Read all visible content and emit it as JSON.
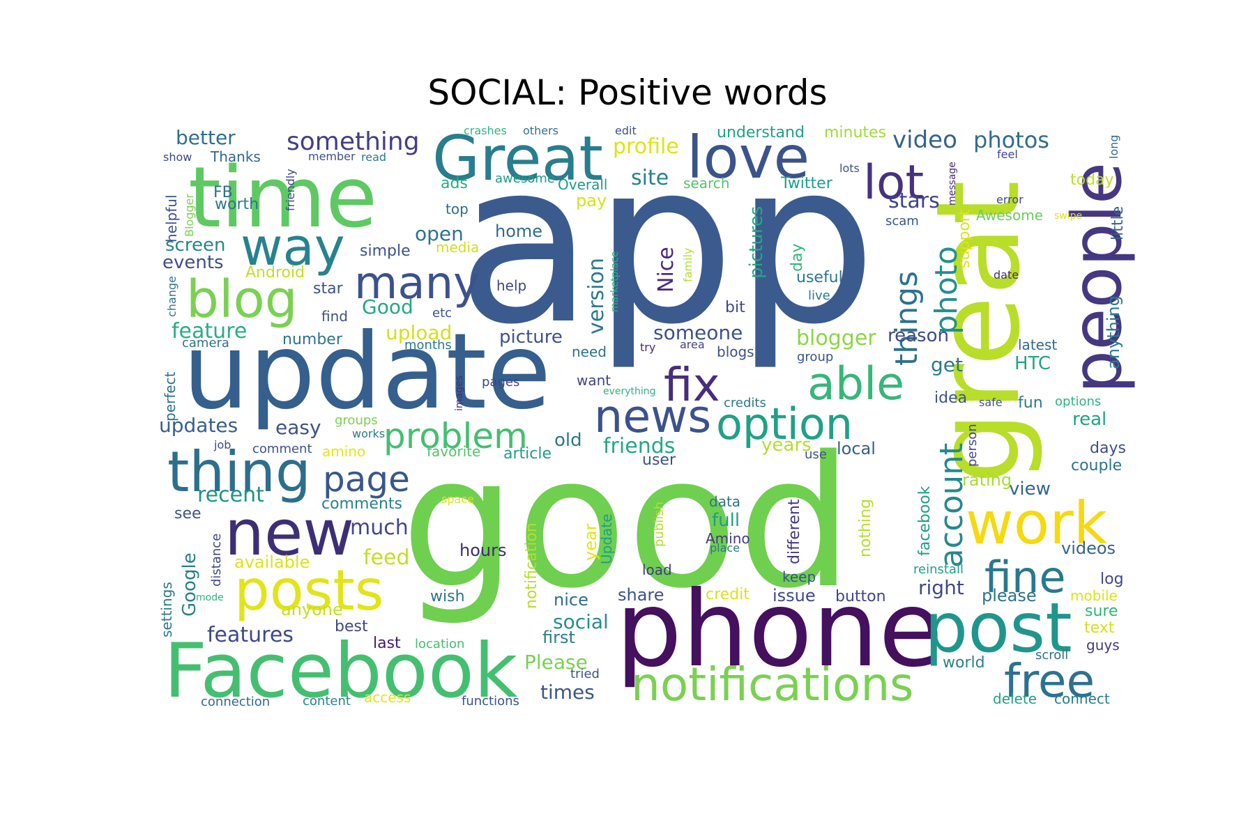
{
  "title": "SOCIAL: Positive words",
  "words": [
    {
      "text": "app",
      "color": "#3b5b8f"
    },
    {
      "text": "good",
      "color": "#6fcf4f"
    },
    {
      "text": "update",
      "color": "#355f8d"
    },
    {
      "text": "great",
      "color": "#b8de29"
    },
    {
      "text": "phone",
      "color": "#45105e"
    },
    {
      "text": "Facebook",
      "color": "#44bf70"
    },
    {
      "text": "time",
      "color": "#5ec962"
    },
    {
      "text": "Great",
      "color": "#287d8e"
    },
    {
      "text": "love",
      "color": "#3a538b"
    },
    {
      "text": "people",
      "color": "#453781"
    },
    {
      "text": "work",
      "color": "#f6d90f"
    },
    {
      "text": "post",
      "color": "#1f968b"
    },
    {
      "text": "notifications",
      "color": "#7ad151"
    },
    {
      "text": "posts",
      "color": "#e2e418"
    },
    {
      "text": "new",
      "color": "#3e2f74"
    },
    {
      "text": "thing",
      "color": "#2d6e8e"
    },
    {
      "text": "way",
      "color": "#26828e"
    },
    {
      "text": "blog",
      "color": "#7ad151"
    },
    {
      "text": "many",
      "color": "#3b528b"
    },
    {
      "text": "news",
      "color": "#3b528b"
    },
    {
      "text": "fix",
      "color": "#472d7b"
    },
    {
      "text": "able",
      "color": "#35b779"
    },
    {
      "text": "option",
      "color": "#1fa187"
    },
    {
      "text": "fine",
      "color": "#2a788e"
    },
    {
      "text": "free",
      "color": "#2c728e"
    },
    {
      "text": "lot",
      "color": "#46327e"
    },
    {
      "text": "problem",
      "color": "#44bf70"
    },
    {
      "text": "page",
      "color": "#39568c"
    },
    {
      "text": "account",
      "color": "#23898e"
    },
    {
      "text": "things",
      "color": "#2c718e"
    },
    {
      "text": "photo",
      "color": "#21908d"
    },
    {
      "text": "something",
      "color": "#433e85"
    },
    {
      "text": "video",
      "color": "#33638d"
    },
    {
      "text": "photos",
      "color": "#2f6c8e"
    },
    {
      "text": "better",
      "color": "#2e6f8e"
    },
    {
      "text": "profile",
      "color": "#dde318"
    },
    {
      "text": "site",
      "color": "#26828e"
    },
    {
      "text": "stars",
      "color": "#404387"
    },
    {
      "text": "Thanks",
      "color": "#31668e"
    },
    {
      "text": "FB",
      "color": "#2d708e"
    },
    {
      "text": "worth",
      "color": "#2a768e"
    },
    {
      "text": "screen",
      "color": "#25858e"
    },
    {
      "text": "events",
      "color": "#3d4d8a"
    },
    {
      "text": "feature",
      "color": "#29af7f"
    },
    {
      "text": "Good",
      "color": "#22a884"
    },
    {
      "text": "upload",
      "color": "#d2e21b"
    },
    {
      "text": "open",
      "color": "#2c738e"
    },
    {
      "text": "simple",
      "color": "#3a548c"
    },
    {
      "text": "home",
      "color": "#2f6b8e"
    },
    {
      "text": "help",
      "color": "#3f4788"
    },
    {
      "text": "pay",
      "color": "#d2e21b"
    },
    {
      "text": "ads",
      "color": "#27ad81"
    },
    {
      "text": "top",
      "color": "#2e6d8e"
    },
    {
      "text": "version",
      "color": "#2a788e"
    },
    {
      "text": "pictures",
      "color": "#22a884"
    },
    {
      "text": "Nice",
      "color": "#482878"
    },
    {
      "text": "someone",
      "color": "#3c508b"
    },
    {
      "text": "picture",
      "color": "#3b528b"
    },
    {
      "text": "blogger",
      "color": "#8bd646"
    },
    {
      "text": "reason",
      "color": "#3e4a89"
    },
    {
      "text": "get",
      "color": "#2a788e"
    },
    {
      "text": "HTC",
      "color": "#20a486"
    },
    {
      "text": "latest",
      "color": "#31678e"
    },
    {
      "text": "useful",
      "color": "#2a788e"
    },
    {
      "text": "day",
      "color": "#32b67a"
    },
    {
      "text": "support",
      "color": "#dde318"
    },
    {
      "text": "little",
      "color": "#34618d"
    },
    {
      "text": "anything",
      "color": "#297a8e"
    },
    {
      "text": "Awesome",
      "color": "#6ccd5a"
    },
    {
      "text": "today",
      "color": "#bddf26"
    },
    {
      "text": "Twitter",
      "color": "#1f9e89"
    },
    {
      "text": "understand",
      "color": "#1fa088"
    },
    {
      "text": "minutes",
      "color": "#a0da39"
    },
    {
      "text": "search",
      "color": "#52c569"
    },
    {
      "text": "Overall",
      "color": "#1f9a8a"
    },
    {
      "text": "awesome",
      "color": "#1e9b8a"
    },
    {
      "text": "updates",
      "color": "#355f8d"
    },
    {
      "text": "easy",
      "color": "#3b528b"
    },
    {
      "text": "friends",
      "color": "#22a884"
    },
    {
      "text": "old",
      "color": "#2a788e"
    },
    {
      "text": "years",
      "color": "#b5de2b"
    },
    {
      "text": "local",
      "color": "#34608d"
    },
    {
      "text": "real",
      "color": "#20a386"
    },
    {
      "text": "days",
      "color": "#3d4e8a"
    },
    {
      "text": "couple",
      "color": "#2c728e"
    },
    {
      "text": "view",
      "color": "#31668e"
    },
    {
      "text": "rating",
      "color": "#a8db34"
    },
    {
      "text": "recent",
      "color": "#20928c"
    },
    {
      "text": "comments",
      "color": "#26828e"
    },
    {
      "text": "much",
      "color": "#3f4889"
    },
    {
      "text": "feed",
      "color": "#c0df25"
    },
    {
      "text": "hours",
      "color": "#3e2c70"
    },
    {
      "text": "available",
      "color": "#dde318"
    },
    {
      "text": "anyone",
      "color": "#c2df23"
    },
    {
      "text": "features",
      "color": "#3e4989"
    },
    {
      "text": "best",
      "color": "#3f4788"
    },
    {
      "text": "last",
      "color": "#48186a"
    },
    {
      "text": "Google",
      "color": "#26818e"
    },
    {
      "text": "nice",
      "color": "#2f6c8e"
    },
    {
      "text": "share",
      "color": "#3b528b"
    },
    {
      "text": "social",
      "color": "#218f8d"
    },
    {
      "text": "first",
      "color": "#287c8e"
    },
    {
      "text": "Please",
      "color": "#7ad151"
    },
    {
      "text": "times",
      "color": "#39568c"
    },
    {
      "text": "issue",
      "color": "#3e4989"
    },
    {
      "text": "button",
      "color": "#404588"
    },
    {
      "text": "credit",
      "color": "#dde318"
    },
    {
      "text": "right",
      "color": "#3e4989"
    },
    {
      "text": "please",
      "color": "#2c728e"
    },
    {
      "text": "videos",
      "color": "#33638d"
    },
    {
      "text": "log",
      "color": "#3f4788"
    },
    {
      "text": "mobile",
      "color": "#dce319"
    },
    {
      "text": "sure",
      "color": "#2fb47c"
    },
    {
      "text": "text",
      "color": "#d0e11c"
    },
    {
      "text": "guys",
      "color": "#453781"
    },
    {
      "text": "world",
      "color": "#26828e"
    },
    {
      "text": "scroll",
      "color": "#2d708e"
    },
    {
      "text": "delete",
      "color": "#1fa088"
    },
    {
      "text": "connect",
      "color": "#287c8e"
    },
    {
      "text": "functions",
      "color": "#3b528b"
    },
    {
      "text": "access",
      "color": "#e5e419"
    },
    {
      "text": "content",
      "color": "#26828e"
    },
    {
      "text": "connection",
      "color": "#31688e"
    },
    {
      "text": "location",
      "color": "#42be71"
    },
    {
      "text": "wish",
      "color": "#2c728e"
    },
    {
      "text": "load",
      "color": "#443983"
    },
    {
      "text": "keep",
      "color": "#3b528b"
    },
    {
      "text": "reinstall",
      "color": "#1f9e89"
    },
    {
      "text": "tried",
      "color": "#3b528b"
    },
    {
      "text": "user",
      "color": "#3b528b"
    },
    {
      "text": "article",
      "color": "#1f9e89"
    },
    {
      "text": "favorite",
      "color": "#52c569"
    },
    {
      "text": "amino",
      "color": "#e5e419"
    },
    {
      "text": "comment",
      "color": "#3b528b"
    },
    {
      "text": "job",
      "color": "#3f4788"
    },
    {
      "text": "works",
      "color": "#2a788e"
    },
    {
      "text": "groups",
      "color": "#7ad151"
    },
    {
      "text": "pages",
      "color": "#404588"
    },
    {
      "text": "safe",
      "color": "#3b528b"
    },
    {
      "text": "fun",
      "color": "#2a788e"
    },
    {
      "text": "options",
      "color": "#2fb47c"
    },
    {
      "text": "idea",
      "color": "#3b528b"
    },
    {
      "text": "credits",
      "color": "#2a788e"
    },
    {
      "text": "want",
      "color": "#414487"
    },
    {
      "text": "need",
      "color": "#2c728e"
    },
    {
      "text": "everything",
      "color": "#2fb47c"
    },
    {
      "text": "blogs",
      "color": "#3b528b"
    },
    {
      "text": "group",
      "color": "#3b528b"
    },
    {
      "text": "area",
      "color": "#404588"
    },
    {
      "text": "try",
      "color": "#482878"
    },
    {
      "text": "months",
      "color": "#2a788e"
    },
    {
      "text": "number",
      "color": "#2c728e"
    },
    {
      "text": "camera",
      "color": "#2c728e"
    },
    {
      "text": "find",
      "color": "#3b528b"
    },
    {
      "text": "etc",
      "color": "#3b528b"
    },
    {
      "text": "bit",
      "color": "#3f4788"
    },
    {
      "text": "star",
      "color": "#3b528b"
    },
    {
      "text": "Android",
      "color": "#c0df25"
    },
    {
      "text": "media",
      "color": "#d0e11c"
    },
    {
      "text": "live",
      "color": "#2a788e"
    },
    {
      "text": "date",
      "color": "#482878"
    },
    {
      "text": "change",
      "color": "#2c728e"
    },
    {
      "text": "helpful",
      "color": "#3b528b"
    },
    {
      "text": "Blogger",
      "color": "#7ad151"
    },
    {
      "text": "friendly",
      "color": "#404588"
    },
    {
      "text": "member",
      "color": "#3b528b"
    },
    {
      "text": "read",
      "color": "#2a788e"
    },
    {
      "text": "show",
      "color": "#3f4788"
    },
    {
      "text": "crashes",
      "color": "#2fb47c"
    },
    {
      "text": "others",
      "color": "#2c728e"
    },
    {
      "text": "edit",
      "color": "#3b528b"
    },
    {
      "text": "lots",
      "color": "#3b528b"
    },
    {
      "text": "feel",
      "color": "#414487"
    },
    {
      "text": "long",
      "color": "#31688e"
    },
    {
      "text": "message",
      "color": "#482878"
    },
    {
      "text": "error",
      "color": "#3f4788"
    },
    {
      "text": "swipe",
      "color": "#dde318"
    },
    {
      "text": "scam",
      "color": "#3b528b"
    },
    {
      "text": "marketplace",
      "color": "#2fb47c"
    },
    {
      "text": "family",
      "color": "#b5de2b"
    },
    {
      "text": "perfect",
      "color": "#2c728e"
    },
    {
      "text": "see",
      "color": "#3b528b"
    },
    {
      "text": "distance",
      "color": "#404588"
    },
    {
      "text": "settings",
      "color": "#2a788e"
    },
    {
      "text": "mode",
      "color": "#2fb47c"
    },
    {
      "text": "images",
      "color": "#482878"
    },
    {
      "text": "space",
      "color": "#dde318"
    },
    {
      "text": "notification",
      "color": "#b5de2b"
    },
    {
      "text": "year",
      "color": "#e5e419"
    },
    {
      "text": "Update",
      "color": "#1f9e89"
    },
    {
      "text": "publish",
      "color": "#b5de2b"
    },
    {
      "text": "data",
      "color": "#2c728e"
    },
    {
      "text": "full",
      "color": "#1f9e89"
    },
    {
      "text": "Amino",
      "color": "#453781"
    },
    {
      "text": "place",
      "color": "#2a788e"
    },
    {
      "text": "different",
      "color": "#453781"
    },
    {
      "text": "nothing",
      "color": "#b5de2b"
    },
    {
      "text": "facebook",
      "color": "#1f9e89"
    },
    {
      "text": "person",
      "color": "#404588"
    },
    {
      "text": "use",
      "color": "#3b528b"
    }
  ]
}
